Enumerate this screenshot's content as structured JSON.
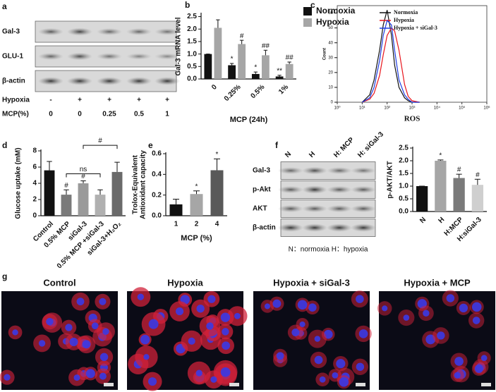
{
  "panels": [
    "a",
    "b",
    "c",
    "d",
    "e",
    "f",
    "g"
  ],
  "blot_a": {
    "rows": [
      "Gal-3",
      "GLU-1",
      "β-actin"
    ],
    "conditions": [
      {
        "name": "Hypoxia",
        "values": [
          "-",
          "+",
          "+",
          "+",
          "+"
        ]
      },
      {
        "name": "MCP(%)",
        "values": [
          "0",
          "0",
          "0.25",
          "0.5",
          "1"
        ]
      }
    ]
  },
  "blot_f": {
    "lanes": [
      "N",
      "H",
      "H: MCP",
      "H: siGal-3"
    ],
    "rows": [
      "Gal-3",
      "p-Akt",
      "AKT",
      "β-actin"
    ],
    "caption": "N：normoxia H：hypoxia"
  },
  "images_g": {
    "titles": [
      "Control",
      "Hypoxia",
      "Hypoxia + siGal-3",
      "Hypoxia + MCP"
    ]
  },
  "chart_data": [
    {
      "type": "bar",
      "ylabel": "Gal-3 mRNA level",
      "xlabel": "MCP (24h)",
      "categories": [
        "0",
        "0.25%",
        "0.5%",
        "1%"
      ],
      "series": [
        {
          "name": "Normoxia",
          "color": "#111111",
          "values": [
            1.0,
            0.55,
            0.2,
            0.1
          ],
          "errors": [
            0,
            0.07,
            0.08,
            0.05
          ],
          "annotations": [
            null,
            "*",
            "*",
            "**"
          ]
        },
        {
          "name": "Hypoxia",
          "color": "#a6a6a6",
          "values": [
            2.05,
            1.4,
            0.95,
            0.6
          ],
          "errors": [
            0.32,
            0.15,
            0.2,
            0.08
          ],
          "annotations": [
            null,
            "#",
            "##",
            "##"
          ]
        }
      ],
      "ylim": [
        0,
        2.6
      ],
      "yticks": [
        {
          "value": 0,
          "label": "0.0"
        },
        {
          "value": 0.5,
          "label": "0.5"
        },
        {
          "value": 1,
          "label": "1.0"
        },
        {
          "value": 1.5,
          "label": "1.5"
        },
        {
          "value": 2,
          "label": "2.0"
        },
        {
          "value": 2.5,
          "label": "2.5"
        }
      ]
    },
    {
      "type": "line",
      "xlabel": "ROS",
      "ylabel": "Count",
      "log_x": true,
      "x": [
        10,
        20,
        30,
        50,
        70,
        100,
        150,
        200,
        300,
        500,
        700,
        1000,
        2000
      ],
      "series": [
        {
          "name": "Normoxia",
          "color": "#111111",
          "values": [
            0,
            5,
            15,
            35,
            52,
            62,
            45,
            25,
            10,
            3,
            1,
            0,
            0
          ]
        },
        {
          "name": "Hypoxia",
          "color": "#e8141b",
          "values": [
            0,
            2,
            6,
            18,
            32,
            45,
            50,
            48,
            35,
            12,
            4,
            1,
            0
          ]
        },
        {
          "name": "Hypoxia + siGal-3",
          "color": "#1f3de0",
          "values": [
            0,
            3,
            10,
            28,
            45,
            55,
            52,
            35,
            15,
            5,
            2,
            0,
            0
          ]
        }
      ],
      "xlim": [
        1,
        1000000
      ],
      "xticks": [
        {
          "value": 1,
          "label": "10⁰"
        },
        {
          "value": 10,
          "label": "10¹"
        },
        {
          "value": 100,
          "label": "10²"
        },
        {
          "value": 1000,
          "label": "10³"
        },
        {
          "value": 10000,
          "label": "10⁴"
        },
        {
          "value": 100000,
          "label": "10⁵"
        },
        {
          "value": 1000000,
          "label": "10⁶"
        }
      ],
      "ylim": [
        0,
        65
      ],
      "yticks": [
        0,
        10,
        20,
        30,
        40,
        50,
        60
      ]
    },
    {
      "type": "bar",
      "ylabel": "Glucose uptake (mM)",
      "categories": [
        "Control",
        "0.5% MCP",
        "siGal-3",
        "0.5% MCP +siGal-3",
        "siGal-3+H₂O₂"
      ],
      "values": [
        5.6,
        2.6,
        4.0,
        2.6,
        5.4
      ],
      "errors": [
        1.1,
        0.6,
        0.3,
        0.6,
        1.2
      ],
      "colors": [
        "#111111",
        "#7a7a7a",
        "#9a9a9a",
        "#b0b0b0",
        "#6a6a6a"
      ],
      "annotations": [
        null,
        "#",
        "#",
        null,
        null
      ],
      "brackets": [
        {
          "from": 1,
          "to": 3,
          "label": "ns"
        },
        {
          "from": 2,
          "to": 4,
          "label": "#"
        }
      ],
      "ylim": [
        0,
        8
      ],
      "yticks": [
        0,
        2,
        4,
        6,
        8
      ]
    },
    {
      "type": "bar",
      "ylabel": [
        "Trolox-Equivalent",
        "Antioxidant capacity"
      ],
      "xlabel": "MCP (%)",
      "categories": [
        "1",
        "2",
        "4"
      ],
      "values": [
        0.11,
        0.21,
        0.44
      ],
      "errors": [
        0.05,
        0.03,
        0.11
      ],
      "colors": [
        "#111111",
        "#a6a6a6",
        "#595959"
      ],
      "annotations": [
        null,
        "*",
        "*"
      ],
      "ylim": [
        0,
        0.6
      ],
      "yticks": [
        {
          "value": 0,
          "label": "0.0"
        },
        {
          "value": 0.2,
          "label": "0.2"
        },
        {
          "value": 0.4,
          "label": "0.4"
        },
        {
          "value": 0.6,
          "label": "0.6"
        }
      ]
    },
    {
      "type": "bar",
      "ylabel": "p-AKT/AKT",
      "categories": [
        "N",
        "H",
        "H:MCP",
        "H:siGal-3"
      ],
      "values": [
        1.0,
        2.0,
        1.32,
        1.05
      ],
      "errors": [
        0,
        0.03,
        0.15,
        0.22
      ],
      "colors": [
        "#111111",
        "#a6a6a6",
        "#7a7a7a",
        "#cfcfcf"
      ],
      "annotations": [
        null,
        "*",
        "#",
        "#"
      ],
      "ylim": [
        0,
        2.5
      ],
      "yticks": [
        {
          "value": 0,
          "label": "0.0"
        },
        {
          "value": 0.5,
          "label": "0.5"
        },
        {
          "value": 1,
          "label": "1.0"
        },
        {
          "value": 1.5,
          "label": "1.5"
        },
        {
          "value": 2,
          "label": "2.0"
        },
        {
          "value": 2.5,
          "label": "2.5"
        }
      ]
    }
  ]
}
